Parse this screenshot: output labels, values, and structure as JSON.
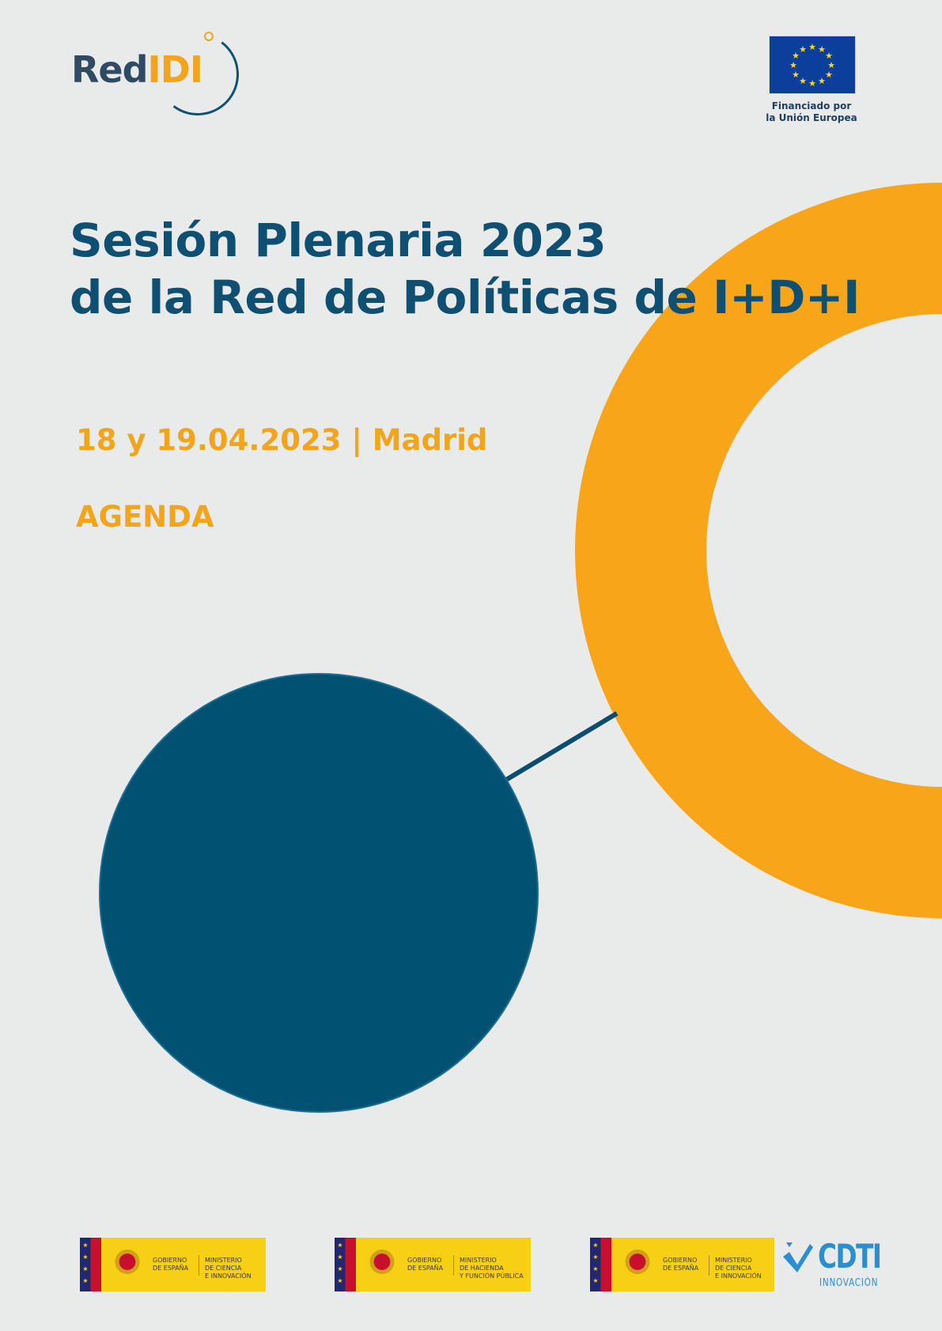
{
  "logos": {
    "redidi": {
      "part1": "Red",
      "part2": "IDI"
    },
    "eu": {
      "caption_line1": "Financiado por",
      "caption_line2": "la Unión Europea"
    },
    "gov_blocks": [
      {
        "gov": "GOBIERNO\nDE ESPAÑA",
        "ministry": "MINISTERIO\nDE CIENCIA\nE INNOVACIÓN"
      },
      {
        "gov": "GOBIERNO\nDE ESPAÑA",
        "ministry": "MINISTERIO\nDE HACIENDA\nY FUNCIÓN PÚBLICA"
      },
      {
        "gov": "GOBIERNO\nDE ESPAÑA",
        "ministry": "MINISTERIO\nDE CIENCIA\nE INNOVACIÓN"
      }
    ],
    "cdti": {
      "word": "CDTI",
      "sub": "INNOVACIÓN"
    }
  },
  "cover": {
    "title_line1": "Sesión Plenaria 2023",
    "title_line2": "de la Red de Políticas de I+D+I",
    "date_location": "18 y 19.04.2023 | Madrid",
    "section": "AGENDA"
  },
  "colors": {
    "background": "#e9eaea",
    "navy": "#0f5072",
    "orange": "#f2a51c",
    "ring": "#f9a51a",
    "disc": "#005172"
  }
}
